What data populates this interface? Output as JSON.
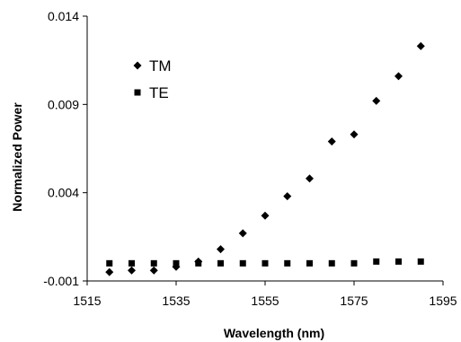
{
  "chart_data": {
    "type": "scatter",
    "title": "",
    "xlabel": "Wavelength (nm)",
    "ylabel": "Normalized Power",
    "xlim": [
      1515,
      1595
    ],
    "ylim": [
      -0.001,
      0.014
    ],
    "x_ticks": [
      "1515",
      "1535",
      "1555",
      "1575",
      "1595"
    ],
    "y_ticks": [
      "-0.001",
      "0.004",
      "0.009",
      "0.014"
    ],
    "grid": false,
    "legend_position": "top-left",
    "series": [
      {
        "name": "TM",
        "marker": "diamond",
        "color": "#000000",
        "x": [
          1520,
          1525,
          1530,
          1535,
          1540,
          1545,
          1550,
          1555,
          1560,
          1565,
          1570,
          1575,
          1580,
          1585,
          1590
        ],
        "y": [
          -0.0005,
          -0.0004,
          -0.0004,
          -0.0002,
          0.0001,
          0.0008,
          0.0017,
          0.0027,
          0.0038,
          0.0048,
          0.0069,
          0.0073,
          0.0092,
          0.0106,
          0.0123
        ]
      },
      {
        "name": "TE",
        "marker": "square",
        "color": "#000000",
        "x": [
          1520,
          1525,
          1530,
          1535,
          1540,
          1545,
          1550,
          1555,
          1560,
          1565,
          1570,
          1575,
          1580,
          1585,
          1590
        ],
        "y": [
          0.0,
          0.0,
          0.0,
          0.0,
          0.0,
          0.0,
          0.0,
          0.0,
          0.0,
          0.0,
          0.0,
          0.0,
          0.0001,
          0.0001,
          0.0001
        ]
      }
    ]
  }
}
